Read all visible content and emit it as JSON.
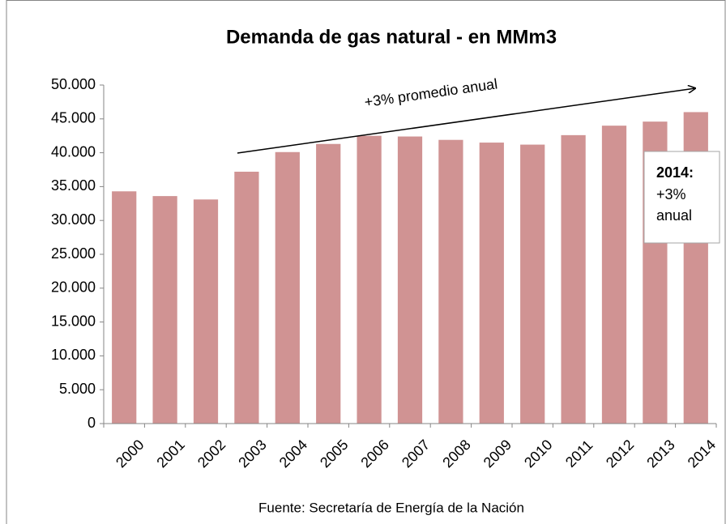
{
  "chart_data": {
    "type": "bar",
    "title": "Demanda de gas natural - en MMm3",
    "categories": [
      "2000",
      "2001",
      "2002",
      "2003",
      "2004",
      "2005",
      "2006",
      "2007",
      "2008",
      "2009",
      "2010",
      "2011",
      "2012",
      "2013",
      "2014"
    ],
    "values": [
      34300,
      33600,
      33100,
      37200,
      40100,
      41300,
      42500,
      42400,
      41900,
      41500,
      41200,
      42600,
      44000,
      44600,
      46000
    ],
    "color": "#d09393",
    "ylim": [
      0,
      50000
    ],
    "yticks": [
      0,
      {
        "value": 5000,
        "label": "5.000"
      },
      {
        "value": 10000,
        "label": "10.000"
      },
      {
        "value": 15000,
        "label": "15.000"
      },
      {
        "value": 20000,
        "label": "20.000"
      },
      {
        "value": 25000,
        "label": "25.000"
      },
      {
        "value": 30000,
        "label": "30.000"
      },
      {
        "value": 35000,
        "label": "35.000"
      },
      {
        "value": 40000,
        "label": "40.000"
      },
      {
        "value": 45000,
        "label": "45.000"
      },
      {
        "value": 50000,
        "label": "50.000"
      }
    ],
    "grid": false,
    "annotations": {
      "trend": "+3% promedio anual",
      "box_title": "2014:",
      "box_line1": "+3%",
      "box_line2": "anual"
    },
    "source": "Fuente: Secretaría de Energía de la Nación"
  }
}
